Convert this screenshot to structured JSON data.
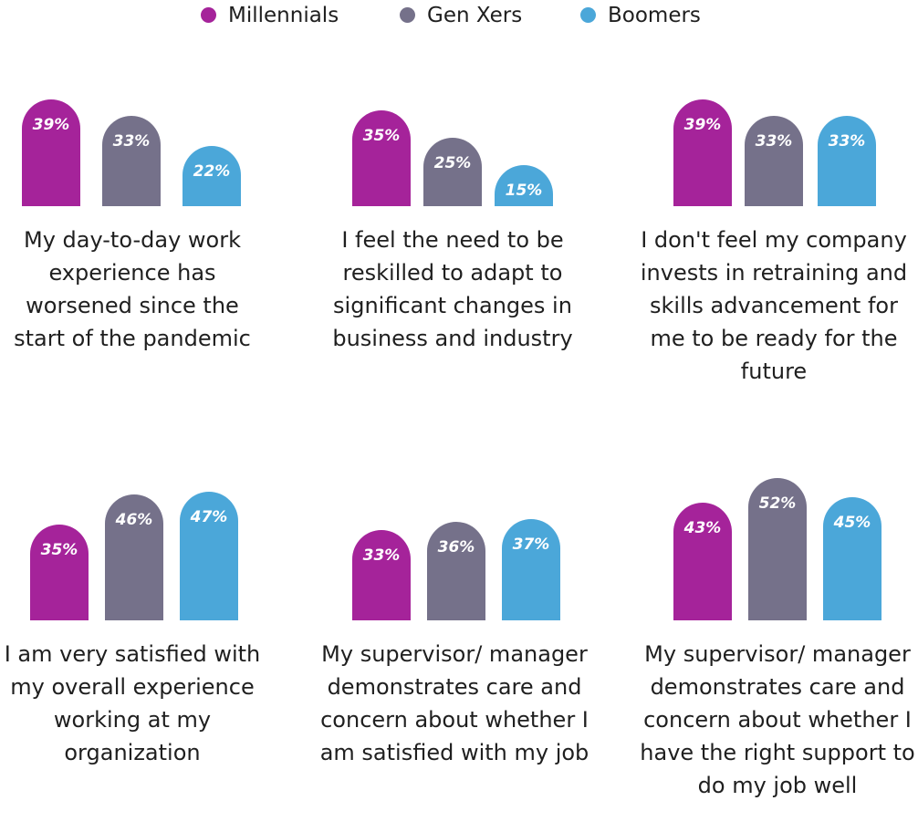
{
  "colors": {
    "millennials": "#a5239a",
    "genx": "#75718a",
    "boomers": "#4ba7d9"
  },
  "legend": [
    {
      "name": "Millennials",
      "color_key": "millennials"
    },
    {
      "name": "Gen Xers",
      "color_key": "genx"
    },
    {
      "name": "Boomers",
      "color_key": "boomers"
    }
  ],
  "chart_data": [
    {
      "type": "bar",
      "title": "My day-to-day work experience has worsened since the start of the pandemic",
      "categories": [
        "Millennials",
        "Gen Xers",
        "Boomers"
      ],
      "values": [
        39,
        33,
        22
      ],
      "labels": [
        "39%",
        "33%",
        "22%"
      ],
      "ylim": [
        0,
        60
      ]
    },
    {
      "type": "bar",
      "title": "I feel the need to be reskilled to adapt to significant changes in business and industry",
      "categories": [
        "Millennials",
        "Gen Xers",
        "Boomers"
      ],
      "values": [
        35,
        25,
        15
      ],
      "labels": [
        "35%",
        "25%",
        "15%"
      ],
      "ylim": [
        0,
        60
      ]
    },
    {
      "type": "bar",
      "title": "I don't feel my company invests in retraining and skills advancement for me to be ready for the future",
      "categories": [
        "Millennials",
        "Gen Xers",
        "Boomers"
      ],
      "values": [
        39,
        33,
        33
      ],
      "labels": [
        "39%",
        "33%",
        "33%"
      ],
      "ylim": [
        0,
        60
      ]
    },
    {
      "type": "bar",
      "title": "I am very satisfied with my overall experience working at my organization",
      "categories": [
        "Millennials",
        "Gen Xers",
        "Boomers"
      ],
      "values": [
        35,
        46,
        47
      ],
      "labels": [
        "35%",
        "46%",
        "47%"
      ],
      "ylim": [
        0,
        60
      ]
    },
    {
      "type": "bar",
      "title": "My supervisor/ manager demonstrates care and concern about whether I am satisfied with my job",
      "categories": [
        "Millennials",
        "Gen Xers",
        "Boomers"
      ],
      "values": [
        33,
        36,
        37
      ],
      "labels": [
        "33%",
        "36%",
        "37%"
      ],
      "ylim": [
        0,
        60
      ]
    },
    {
      "type": "bar",
      "title": "My supervisor/ manager demonstrates care and concern about whether I have the right support to do my job well",
      "categories": [
        "Millennials",
        "Gen Xers",
        "Boomers"
      ],
      "values": [
        43,
        52,
        45
      ],
      "labels": [
        "43%",
        "52%",
        "45%"
      ],
      "ylim": [
        0,
        60
      ]
    }
  ]
}
